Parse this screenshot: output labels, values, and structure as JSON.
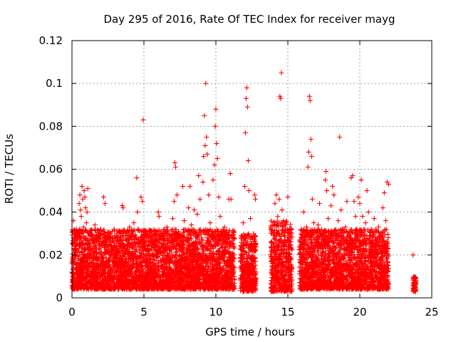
{
  "chart_data": {
    "type": "scatter",
    "title": "Day 295 of 2016, Rate Of TEC Index for receiver mayg",
    "xlabel": "GPS time / hours",
    "ylabel": "ROTI / TECUs",
    "xlim": [
      0,
      25
    ],
    "ylim": [
      0,
      0.12
    ],
    "x_ticks": [
      0,
      5,
      10,
      15,
      20,
      25
    ],
    "x_tick_labels": [
      "0",
      "5",
      "10",
      "15",
      "20",
      "25"
    ],
    "y_ticks": [
      0,
      0.02,
      0.04,
      0.06,
      0.08,
      0.1,
      0.12
    ],
    "y_tick_labels": [
      "0",
      "0.02",
      "0.04",
      "0.06",
      "0.08",
      "0.1",
      "0.12"
    ],
    "grid": true,
    "marker": "plus",
    "color": "#ff0000",
    "series": [
      {
        "name": "ROTI",
        "points": [
          [
            0.0,
            0.012
          ],
          [
            0.05,
            0.025
          ],
          [
            0.1,
            0.036
          ],
          [
            0.15,
            0.018
          ],
          [
            0.2,
            0.009
          ],
          [
            0.25,
            0.028
          ],
          [
            0.3,
            0.032
          ],
          [
            0.35,
            0.014
          ],
          [
            0.4,
            0.011
          ],
          [
            0.45,
            0.03
          ],
          [
            0.5,
            0.044
          ],
          [
            0.55,
            0.048
          ],
          [
            0.6,
            0.041
          ],
          [
            0.65,
            0.038
          ],
          [
            0.7,
            0.052
          ],
          [
            0.75,
            0.046
          ],
          [
            0.8,
            0.033
          ],
          [
            0.85,
            0.05
          ],
          [
            0.9,
            0.047
          ],
          [
            0.95,
            0.042
          ],
          [
            1.0,
            0.035
          ],
          [
            1.05,
            0.04
          ],
          [
            1.1,
            0.051
          ],
          [
            1.15,
            0.03
          ],
          [
            1.2,
            0.022
          ],
          [
            1.25,
            0.015
          ],
          [
            1.3,
            0.01
          ],
          [
            1.35,
            0.019
          ],
          [
            1.4,
            0.027
          ],
          [
            1.45,
            0.016
          ],
          [
            1.6,
            0.034
          ],
          [
            1.7,
            0.021
          ],
          [
            1.8,
            0.012
          ],
          [
            1.9,
            0.025
          ],
          [
            2.0,
            0.03
          ],
          [
            2.1,
            0.018
          ],
          [
            2.2,
            0.047
          ],
          [
            2.3,
            0.044
          ],
          [
            2.4,
            0.026
          ],
          [
            2.5,
            0.014
          ],
          [
            2.6,
            0.009
          ],
          [
            2.7,
            0.02
          ],
          [
            2.8,
            0.031
          ],
          [
            2.9,
            0.024
          ],
          [
            3.0,
            0.017
          ],
          [
            3.1,
            0.029
          ],
          [
            3.2,
            0.013
          ],
          [
            3.3,
            0.022
          ],
          [
            3.4,
            0.008
          ],
          [
            3.5,
            0.043
          ],
          [
            3.55,
            0.042
          ],
          [
            3.6,
            0.031
          ],
          [
            3.7,
            0.019
          ],
          [
            3.8,
            0.011
          ],
          [
            3.9,
            0.026
          ],
          [
            4.0,
            0.033
          ],
          [
            4.1,
            0.02
          ],
          [
            4.2,
            0.014
          ],
          [
            4.3,
            0.035
          ],
          [
            4.4,
            0.025
          ],
          [
            4.5,
            0.056
          ],
          [
            4.55,
            0.04
          ],
          [
            4.6,
            0.032
          ],
          [
            4.7,
            0.021
          ],
          [
            4.8,
            0.047
          ],
          [
            4.9,
            0.045
          ],
          [
            4.95,
            0.083
          ],
          [
            5.0,
            0.028
          ],
          [
            5.1,
            0.015
          ],
          [
            5.2,
            0.009
          ],
          [
            5.3,
            0.022
          ],
          [
            5.4,
            0.018
          ],
          [
            5.5,
            0.012
          ],
          [
            5.6,
            0.025
          ],
          [
            5.7,
            0.02
          ],
          [
            5.8,
            0.031
          ],
          [
            5.9,
            0.014
          ],
          [
            6.0,
            0.04
          ],
          [
            6.05,
            0.038
          ],
          [
            6.1,
            0.026
          ],
          [
            6.2,
            0.017
          ],
          [
            6.3,
            0.029
          ],
          [
            6.4,
            0.011
          ],
          [
            6.5,
            0.024
          ],
          [
            6.6,
            0.033
          ],
          [
            6.7,
            0.019
          ],
          [
            6.8,
            0.028
          ],
          [
            6.9,
            0.013
          ],
          [
            7.0,
            0.037
          ],
          [
            7.1,
            0.045
          ],
          [
            7.15,
            0.063
          ],
          [
            7.2,
            0.061
          ],
          [
            7.3,
            0.048
          ],
          [
            7.4,
            0.031
          ],
          [
            7.5,
            0.022
          ],
          [
            7.6,
            0.016
          ],
          [
            7.7,
            0.052
          ],
          [
            7.8,
            0.036
          ],
          [
            7.9,
            0.027
          ],
          [
            8.0,
            0.018
          ],
          [
            8.1,
            0.042
          ],
          [
            8.2,
            0.052
          ],
          [
            8.3,
            0.034
          ],
          [
            8.4,
            0.025
          ],
          [
            8.5,
            0.041
          ],
          [
            8.6,
            0.03
          ],
          [
            8.7,
            0.039
          ],
          [
            8.8,
            0.057
          ],
          [
            8.9,
            0.046
          ],
          [
            9.0,
            0.028
          ],
          [
            9.1,
            0.054
          ],
          [
            9.15,
            0.066
          ],
          [
            9.2,
            0.085
          ],
          [
            9.25,
            0.071
          ],
          [
            9.3,
            0.1
          ],
          [
            9.35,
            0.075
          ],
          [
            9.4,
            0.067
          ],
          [
            9.5,
            0.048
          ],
          [
            9.6,
            0.035
          ],
          [
            9.7,
            0.029
          ],
          [
            9.8,
            0.055
          ],
          [
            9.9,
            0.062
          ],
          [
            9.95,
            0.08
          ],
          [
            10.0,
            0.088
          ],
          [
            10.05,
            0.072
          ],
          [
            10.1,
            0.065
          ],
          [
            10.2,
            0.047
          ],
          [
            10.3,
            0.038
          ],
          [
            10.4,
            0.027
          ],
          [
            10.5,
            0.019
          ],
          [
            10.6,
            0.033
          ],
          [
            10.7,
            0.012
          ],
          [
            10.8,
            0.024
          ],
          [
            10.9,
            0.046
          ],
          [
            11.0,
            0.058
          ],
          [
            11.05,
            0.046
          ],
          [
            11.1,
            0.02
          ],
          [
            11.2,
            0.011
          ],
          [
            11.7,
            0.014
          ],
          [
            11.8,
            0.02
          ],
          [
            11.9,
            0.035
          ],
          [
            12.0,
            0.052
          ],
          [
            12.05,
            0.077
          ],
          [
            12.1,
            0.093
          ],
          [
            12.15,
            0.098
          ],
          [
            12.2,
            0.089
          ],
          [
            12.25,
            0.064
          ],
          [
            12.3,
            0.05
          ],
          [
            12.4,
            0.037
          ],
          [
            12.5,
            0.028
          ],
          [
            12.6,
            0.018
          ],
          [
            12.7,
            0.048
          ],
          [
            12.75,
            0.046
          ],
          [
            12.8,
            0.012
          ],
          [
            13.9,
            0.016
          ],
          [
            14.0,
            0.029
          ],
          [
            14.1,
            0.044
          ],
          [
            14.2,
            0.048
          ],
          [
            14.3,
            0.038
          ],
          [
            14.4,
            0.046
          ],
          [
            14.45,
            0.094
          ],
          [
            14.5,
            0.093
          ],
          [
            14.55,
            0.105
          ],
          [
            14.6,
            0.041
          ],
          [
            14.7,
            0.036
          ],
          [
            14.8,
            0.027
          ],
          [
            14.9,
            0.019
          ],
          [
            15.0,
            0.047
          ],
          [
            15.1,
            0.03
          ],
          [
            15.2,
            0.011
          ],
          [
            15.3,
            0.004
          ],
          [
            15.9,
            0.016
          ],
          [
            16.0,
            0.029
          ],
          [
            16.1,
            0.04
          ],
          [
            16.2,
            0.02
          ],
          [
            16.3,
            0.033
          ],
          [
            16.4,
            0.061
          ],
          [
            16.45,
            0.068
          ],
          [
            16.5,
            0.094
          ],
          [
            16.55,
            0.092
          ],
          [
            16.6,
            0.074
          ],
          [
            16.65,
            0.066
          ],
          [
            16.7,
            0.046
          ],
          [
            16.8,
            0.035
          ],
          [
            16.9,
            0.024
          ],
          [
            17.0,
            0.018
          ],
          [
            17.1,
            0.034
          ],
          [
            17.2,
            0.044
          ],
          [
            17.3,
            0.026
          ],
          [
            17.4,
            0.014
          ],
          [
            17.5,
            0.03
          ],
          [
            17.6,
            0.055
          ],
          [
            17.65,
            0.059
          ],
          [
            17.7,
            0.05
          ],
          [
            17.8,
            0.037
          ],
          [
            17.9,
            0.022
          ],
          [
            18.0,
            0.043
          ],
          [
            18.1,
            0.052
          ],
          [
            18.2,
            0.048
          ],
          [
            18.3,
            0.031
          ],
          [
            18.4,
            0.02
          ],
          [
            18.5,
            0.036
          ],
          [
            18.6,
            0.075
          ],
          [
            18.7,
            0.041
          ],
          [
            18.8,
            0.027
          ],
          [
            18.9,
            0.018
          ],
          [
            19.0,
            0.033
          ],
          [
            19.1,
            0.045
          ],
          [
            19.2,
            0.025
          ],
          [
            19.3,
            0.015
          ],
          [
            19.4,
            0.056
          ],
          [
            19.5,
            0.057
          ],
          [
            19.6,
            0.045
          ],
          [
            19.7,
            0.038
          ],
          [
            19.8,
            0.03
          ],
          [
            19.9,
            0.047
          ],
          [
            20.0,
            0.044
          ],
          [
            20.1,
            0.055
          ],
          [
            20.2,
            0.038
          ],
          [
            20.3,
            0.026
          ],
          [
            20.4,
            0.035
          ],
          [
            20.5,
            0.05
          ],
          [
            20.6,
            0.04
          ],
          [
            20.7,
            0.031
          ],
          [
            20.8,
            0.022
          ],
          [
            20.9,
            0.015
          ],
          [
            21.0,
            0.037
          ],
          [
            21.1,
            0.028
          ],
          [
            21.2,
            0.019
          ],
          [
            21.3,
            0.033
          ],
          [
            21.4,
            0.026
          ],
          [
            21.5,
            0.012
          ],
          [
            21.6,
            0.042
          ],
          [
            21.7,
            0.049
          ],
          [
            21.8,
            0.036
          ],
          [
            21.9,
            0.054
          ],
          [
            22.0,
            0.053
          ],
          [
            23.7,
            0.02
          ],
          [
            23.75,
            0.009
          ],
          [
            23.8,
            0.005
          ],
          [
            23.85,
            0.003
          ],
          [
            23.9,
            0.008
          ]
        ]
      }
    ],
    "dense_bands": [
      {
        "start": 0.0,
        "end": 11.3,
        "low": 0.004,
        "high": 0.032
      },
      {
        "start": 11.7,
        "end": 12.8,
        "low": 0.003,
        "high": 0.03
      },
      {
        "start": 13.8,
        "end": 15.3,
        "low": 0.003,
        "high": 0.036
      },
      {
        "start": 15.8,
        "end": 22.0,
        "low": 0.004,
        "high": 0.032
      },
      {
        "start": 23.7,
        "end": 23.9,
        "low": 0.003,
        "high": 0.01
      }
    ]
  }
}
